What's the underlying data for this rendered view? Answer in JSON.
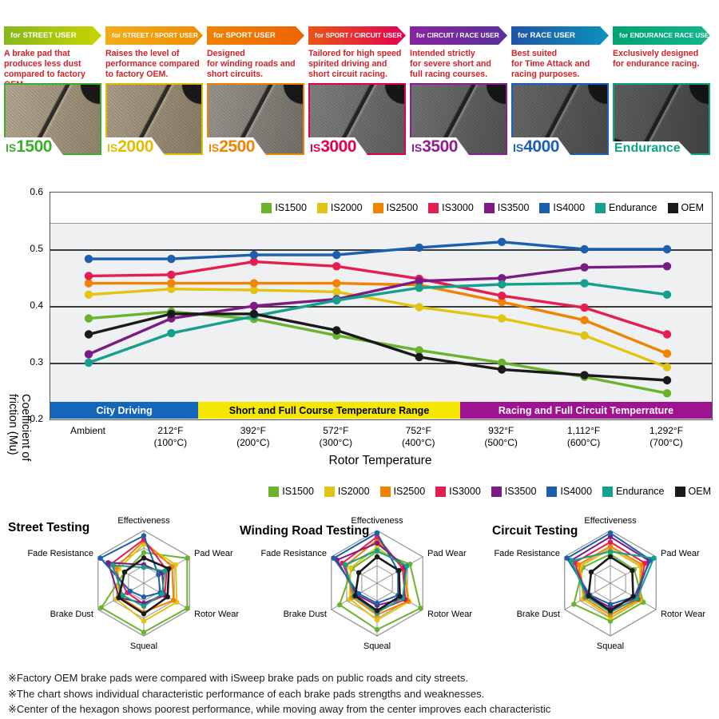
{
  "products": [
    {
      "banner": "for STREET USER",
      "description": "A brake pad that\nproduces less dust\ncompared to factory OEM.",
      "name": "IS1500",
      "color": "#3cae2e",
      "arrow_from": "#86b81b",
      "arrow_to": "#c8d400",
      "pad_light": "#b3a58c",
      "pad_dark": "#8f8068"
    },
    {
      "banner": "for STREET / SPORT USER",
      "description": "Raises the level of\nperformance compared\nto factory OEM.",
      "name": "IS2000",
      "color": "#e3bd00",
      "arrow_from": "#f3ad19",
      "arrow_to": "#ef8d00",
      "pad_light": "#a99b83",
      "pad_dark": "#86785f"
    },
    {
      "banner": "for SPORT USER",
      "description": "Designed\nfor winding roads and\nshort circuits.",
      "name": "IS2500",
      "color": "#f08300",
      "arrow_from": "#f08300",
      "arrow_to": "#ee6300",
      "pad_light": "#95918a",
      "pad_dark": "#6e6a63"
    },
    {
      "banner": "for SPORT / CIRCUIT USER",
      "description": "Tailored for high speed\nspirited driving and\nshort circuit racing.",
      "name": "IS3000",
      "color": "#e5004f",
      "arrow_from": "#ea5514",
      "arrow_to": "#e50051",
      "pad_light": "#7b7b7b",
      "pad_dark": "#575757"
    },
    {
      "banner": "for CIRCUIT / RACE USER",
      "description": "Intended strictly\nfor severe short and\nfull racing courses.",
      "name": "IS3500",
      "color": "#8d1d93",
      "arrow_from": "#8824a0",
      "arrow_to": "#5b2f9e",
      "pad_light": "#6c6c6c",
      "pad_dark": "#4b4b4b"
    },
    {
      "banner": "for RACE USER",
      "description": "Best suited\nfor Time Attack and\nracing purposes.",
      "name": "IS4000",
      "color": "#1c5fb5",
      "arrow_from": "#2153a6",
      "arrow_to": "#0b93bb",
      "pad_light": "#626262",
      "pad_dark": "#424242"
    },
    {
      "banner": "for ENDURANCE RACE USER",
      "description": "Exclusively designed\nfor endurance racing.",
      "name": "Endurance",
      "color": "#0aa383",
      "arrow_from": "#00a472",
      "arrow_to": "#12b78c",
      "pad_light": "#585858",
      "pad_dark": "#3a3a3a"
    }
  ],
  "chart_data": [
    {
      "type": "line",
      "title": "",
      "xlabel": "Rotor Temperature",
      "ylabel": "Coefficient of friction (Mu)",
      "ylim": [
        0.2,
        0.6
      ],
      "yticks": [
        "0.6",
        "0.5",
        "0.4",
        "0.3",
        "0.2"
      ],
      "grid": true,
      "legend_position": "top-right-inside",
      "categories": [
        "Ambient",
        "212°F\n(100°C)",
        "392°F\n(200°C)",
        "572°F\n(300°C)",
        "752°F\n(400°C)",
        "932°F\n(500°C)",
        "1,112°F\n(600°C)",
        "1,292°F\n(700°C)"
      ],
      "series": [
        {
          "name": "IS1500",
          "color": "#6ab42d",
          "values": [
            0.378,
            0.39,
            0.377,
            0.348,
            0.322,
            0.3,
            0.275,
            0.246
          ]
        },
        {
          "name": "IS2000",
          "color": "#e2c412",
          "values": [
            0.42,
            0.43,
            0.428,
            0.425,
            0.398,
            0.378,
            0.348,
            0.292
          ]
        },
        {
          "name": "IS2500",
          "color": "#f08300",
          "values": [
            0.44,
            0.44,
            0.44,
            0.44,
            0.437,
            0.407,
            0.375,
            0.316
          ]
        },
        {
          "name": "IS3000",
          "color": "#e61e50",
          "values": [
            0.453,
            0.455,
            0.478,
            0.47,
            0.448,
            0.418,
            0.397,
            0.35
          ]
        },
        {
          "name": "IS3500",
          "color": "#7d1b85",
          "values": [
            0.315,
            0.378,
            0.4,
            0.412,
            0.444,
            0.449,
            0.468,
            0.47
          ]
        },
        {
          "name": "IS4000",
          "color": "#1c5fad",
          "values": [
            0.483,
            0.483,
            0.49,
            0.49,
            0.503,
            0.513,
            0.5,
            0.5
          ]
        },
        {
          "name": "Endurance",
          "color": "#14a08c",
          "values": [
            0.3,
            0.352,
            0.382,
            0.41,
            0.432,
            0.438,
            0.44,
            0.42
          ]
        },
        {
          "name": "OEM",
          "color": "#1a1a1a",
          "values": [
            0.35,
            0.386,
            0.386,
            0.357,
            0.31,
            0.288,
            0.278,
            0.269
          ]
        }
      ],
      "bands": [
        {
          "label": "City Driving",
          "color": "#1565bb",
          "text_color": "#ffffff",
          "span": [
            0,
            0.2235
          ]
        },
        {
          "label": "Short and Full Course Temperature Range",
          "color": "#f6e700",
          "text_color": "#000000",
          "span": [
            0.2235,
            0.6196
          ]
        },
        {
          "label": "Racing and Full Circuit Temperrature",
          "color": "#9e1390",
          "text_color": "#ffffff",
          "span": [
            0.6196,
            1
          ]
        }
      ]
    },
    {
      "type": "radar",
      "title": "Street Testing",
      "axes": [
        "Effectiveness",
        "Pad Wear",
        "Rotor Wear",
        "Squeal",
        "Brake Dust",
        "Fade Resistance"
      ],
      "scale": [
        0,
        1
      ],
      "series": [
        {
          "name": "IS1500",
          "color": "#6ab42d",
          "values": [
            0.58,
            0.95,
            0.95,
            0.93,
            0.93,
            0.42
          ]
        },
        {
          "name": "IS2000",
          "color": "#e2c412",
          "values": [
            0.74,
            0.7,
            0.72,
            0.72,
            0.6,
            0.55
          ]
        },
        {
          "name": "IS2500",
          "color": "#f08300",
          "values": [
            0.8,
            0.62,
            0.65,
            0.55,
            0.52,
            0.6
          ]
        },
        {
          "name": "IS3000",
          "color": "#e61e50",
          "values": [
            0.83,
            0.5,
            0.46,
            0.4,
            0.36,
            0.72
          ]
        },
        {
          "name": "IS3500",
          "color": "#7d1b85",
          "values": [
            0.35,
            0.4,
            0.44,
            0.38,
            0.54,
            0.78
          ]
        },
        {
          "name": "IS4000",
          "color": "#1c5fad",
          "values": [
            0.9,
            0.32,
            0.36,
            0.26,
            0.3,
            0.95
          ]
        },
        {
          "name": "Endurance",
          "color": "#14a08c",
          "values": [
            0.3,
            0.46,
            0.4,
            0.44,
            0.46,
            0.68
          ]
        },
        {
          "name": "OEM",
          "color": "#1a1a1a",
          "values": [
            0.48,
            0.55,
            0.52,
            0.58,
            0.55,
            0.42
          ]
        }
      ]
    },
    {
      "type": "radar",
      "title": "Winding Road Testing",
      "axes": [
        "Effectiveness",
        "Pad Wear",
        "Rotor Wear",
        "Squeal",
        "Brake Dust",
        "Fade Resistance"
      ],
      "scale": [
        0,
        1
      ],
      "series": [
        {
          "name": "IS1500",
          "color": "#6ab42d",
          "values": [
            0.6,
            0.72,
            0.95,
            0.88,
            0.82,
            0.55
          ]
        },
        {
          "name": "IS2000",
          "color": "#e2c412",
          "values": [
            0.68,
            0.6,
            0.7,
            0.7,
            0.6,
            0.58
          ]
        },
        {
          "name": "IS2500",
          "color": "#f08300",
          "values": [
            0.82,
            0.58,
            0.68,
            0.6,
            0.54,
            0.68
          ]
        },
        {
          "name": "IS3000",
          "color": "#e61e50",
          "values": [
            0.88,
            0.56,
            0.62,
            0.52,
            0.46,
            0.76
          ]
        },
        {
          "name": "IS3500",
          "color": "#7d1b85",
          "values": [
            0.76,
            0.62,
            0.58,
            0.42,
            0.44,
            0.88
          ]
        },
        {
          "name": "IS4000",
          "color": "#1c5fad",
          "values": [
            0.95,
            0.46,
            0.46,
            0.38,
            0.4,
            0.95
          ]
        },
        {
          "name": "Endurance",
          "color": "#14a08c",
          "values": [
            0.62,
            0.65,
            0.56,
            0.56,
            0.5,
            0.7
          ]
        },
        {
          "name": "OEM",
          "color": "#1a1a1a",
          "values": [
            0.5,
            0.48,
            0.5,
            0.52,
            0.48,
            0.4
          ]
        }
      ]
    },
    {
      "type": "radar",
      "title": "Circuit Testing",
      "axes": [
        "Effectiveness",
        "Pad Wear",
        "Rotor Wear",
        "Squeal",
        "Brake Dust",
        "Fade Resistance"
      ],
      "scale": [
        0,
        1
      ],
      "series": [
        {
          "name": "IS1500",
          "color": "#6ab42d",
          "values": [
            0.55,
            0.52,
            0.72,
            0.72,
            0.8,
            0.6
          ]
        },
        {
          "name": "IS2000",
          "color": "#e2c412",
          "values": [
            0.65,
            0.65,
            0.65,
            0.65,
            0.6,
            0.65
          ]
        },
        {
          "name": "IS2500",
          "color": "#f08300",
          "values": [
            0.7,
            0.7,
            0.62,
            0.6,
            0.56,
            0.7
          ]
        },
        {
          "name": "IS3000",
          "color": "#e61e50",
          "values": [
            0.78,
            0.76,
            0.6,
            0.52,
            0.5,
            0.78
          ]
        },
        {
          "name": "IS3500",
          "color": "#7d1b85",
          "values": [
            0.88,
            0.85,
            0.56,
            0.46,
            0.48,
            0.86
          ]
        },
        {
          "name": "IS4000",
          "color": "#1c5fad",
          "values": [
            0.95,
            0.88,
            0.52,
            0.4,
            0.45,
            0.95
          ]
        },
        {
          "name": "Endurance",
          "color": "#14a08c",
          "values": [
            0.6,
            0.95,
            0.58,
            0.55,
            0.52,
            0.85
          ]
        },
        {
          "name": "OEM",
          "color": "#1a1a1a",
          "values": [
            0.5,
            0.48,
            0.5,
            0.52,
            0.48,
            0.42
          ]
        }
      ]
    }
  ],
  "footer": {
    "notes": [
      "※Factory OEM brake pads were compared with iSweep brake pads on public roads and city streets.",
      "※The chart shows individual characteristic performance of each brake pads strengths and weaknesses.",
      "※Center of the hexagon shows poorest performance, while moving away from the center improves each characteristic"
    ]
  }
}
